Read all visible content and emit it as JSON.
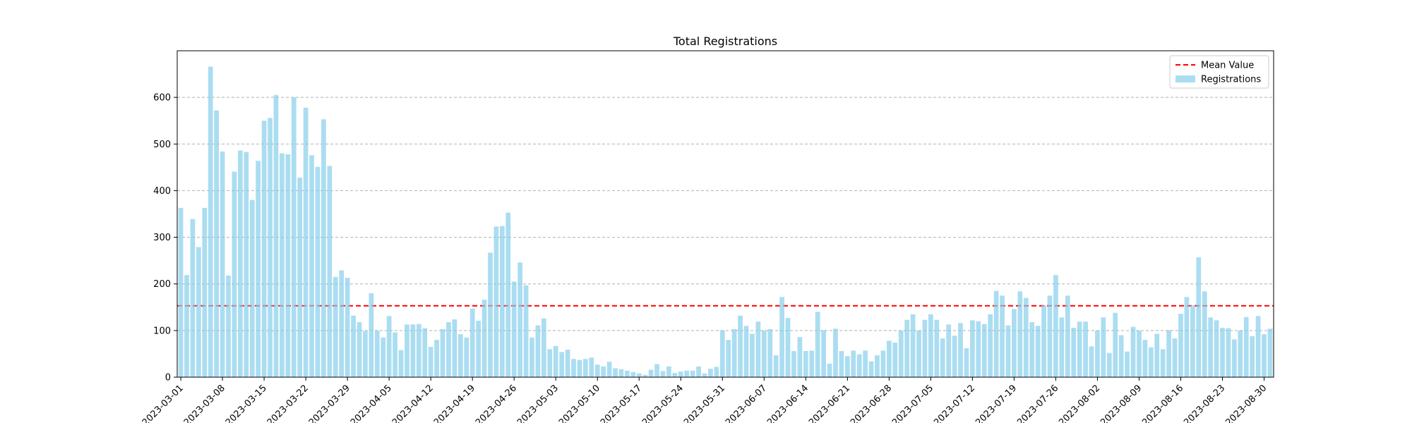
{
  "chart_data": {
    "type": "bar",
    "title": "Total Registrations",
    "xlabel": "",
    "ylabel": "",
    "start_date": "2023-03-01",
    "x_tick_labels": [
      "2023-03-01",
      "2023-03-08",
      "2023-03-15",
      "2023-03-22",
      "2023-03-29",
      "2023-04-05",
      "2023-04-12",
      "2023-04-19",
      "2023-04-26",
      "2023-05-03",
      "2023-05-10",
      "2023-05-17",
      "2023-05-24",
      "2023-05-31",
      "2023-06-07",
      "2023-06-14",
      "2023-06-21",
      "2023-06-28",
      "2023-07-05",
      "2023-07-12",
      "2023-07-19",
      "2023-07-26",
      "2023-08-02",
      "2023-08-09",
      "2023-08-16",
      "2023-08-23",
      "2023-08-30"
    ],
    "y_ticks": [
      0,
      100,
      200,
      300,
      400,
      500,
      600
    ],
    "ylim": [
      0,
      700
    ],
    "grid": "y-dashed",
    "legend": {
      "placement": "top-right",
      "mean_label": "Mean Value",
      "bar_label": "Registrations"
    },
    "colors": {
      "bar": "#87ceeb",
      "mean_line": "#ff0000",
      "grid": "#b0b0b0"
    },
    "mean_value": 153,
    "series": [
      {
        "name": "Registrations",
        "values": [
          363,
          219,
          339,
          279,
          363,
          666,
          572,
          484,
          218,
          441,
          486,
          483,
          380,
          464,
          550,
          556,
          605,
          480,
          478,
          600,
          428,
          578,
          476,
          451,
          553,
          453,
          215,
          229,
          213,
          132,
          118,
          99,
          180,
          100,
          85,
          131,
          96,
          58,
          113,
          113,
          114,
          105,
          65,
          80,
          103,
          118,
          124,
          92,
          85,
          147,
          121,
          166,
          267,
          323,
          324,
          353,
          205,
          246,
          197,
          85,
          111,
          126,
          60,
          67,
          54,
          59,
          39,
          37,
          39,
          42,
          27,
          23,
          33,
          19,
          17,
          14,
          11,
          8,
          5,
          16,
          28,
          13,
          23,
          9,
          12,
          14,
          14,
          23,
          8,
          18,
          22,
          100,
          80,
          103,
          132,
          110,
          93,
          119,
          100,
          103,
          47,
          172,
          127,
          56,
          86,
          56,
          57,
          140,
          101,
          29,
          104,
          56,
          45,
          57,
          49,
          57,
          34,
          47,
          57,
          78,
          74,
          100,
          123,
          135,
          100,
          123,
          135,
          123,
          83,
          113,
          89,
          116,
          62,
          122,
          120,
          114,
          135,
          185,
          175,
          111,
          146,
          184,
          170,
          118,
          110,
          154,
          175,
          219,
          128,
          175,
          106,
          119,
          119,
          66,
          100,
          128,
          52,
          138,
          90,
          55,
          108,
          100,
          80,
          64,
          93,
          60,
          101,
          83,
          136,
          172,
          154,
          257,
          184,
          128,
          122,
          106,
          105,
          81,
          100,
          129,
          88,
          131,
          92,
          104
        ]
      }
    ]
  }
}
